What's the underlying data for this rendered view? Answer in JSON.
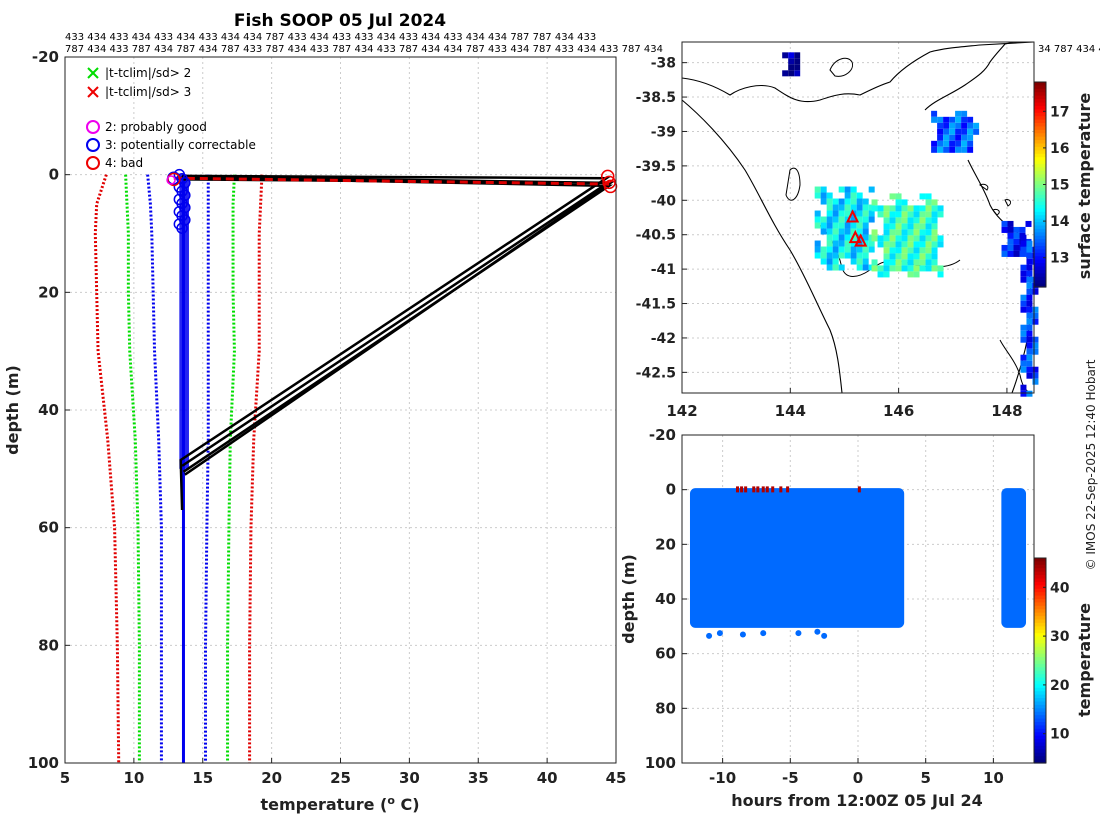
{
  "chart_data": [
    {
      "type": "line",
      "name": "profile",
      "title": "Fish SOOP 05 Jul 2024",
      "xlabel": "temperature (",
      "xlabel_sup": "o",
      "xlabel_unit": " C)",
      "ylabel": "depth (m)",
      "xlim": [
        5,
        45
      ],
      "ylim": [
        -20,
        100
      ],
      "y_reversed": true,
      "xticks": [
        "5",
        "10",
        "15",
        "20",
        "25",
        "30",
        "35",
        "40",
        "45"
      ],
      "yticks": [
        "-20",
        "0",
        "20",
        "40",
        "60",
        "80",
        "100"
      ],
      "grid": true,
      "id_row1": "433 434 433 434 433 434 433 434 434 787 433 434 433 433 434 433 434 433 434 434 787 787 434 433",
      "id_row2": "787 434 433 787 434 787 434 787 433 787 434 433 787 434 433 787 434 434 787 433 434 787 433 434 433 787 434",
      "id_row_right": "34 787 434 4",
      "legend": [
        {
          "label": "|t-tclim|/sd> 2",
          "marker": "x",
          "color": "#00dd00"
        },
        {
          "label": "|t-tclim|/sd> 3",
          "marker": "x",
          "color": "#ee0000"
        },
        {
          "label": "2: probably good",
          "marker": "o",
          "color": "#ee00ee"
        },
        {
          "label": "3: potentially correctable",
          "marker": "o",
          "color": "#0000ee"
        },
        {
          "label": "4: bad",
          "marker": "o",
          "color": "#ee0000"
        }
      ],
      "climatology": [
        {
          "name": "clim -3sd",
          "color": "#e00000",
          "depth": [
            0,
            5,
            10,
            20,
            30,
            45,
            60,
            80,
            100
          ],
          "temp": [
            8.0,
            7.3,
            7.2,
            7.3,
            7.4,
            8.1,
            8.6,
            8.8,
            8.9
          ]
        },
        {
          "name": "clim -2sd",
          "color": "#00dd00",
          "depth": [
            0,
            5,
            10,
            20,
            30,
            45,
            60,
            80,
            100
          ],
          "temp": [
            9.4,
            9.5,
            9.6,
            9.6,
            9.7,
            10.1,
            10.3,
            10.4,
            10.4
          ]
        },
        {
          "name": "clim -1sd",
          "color": "#0000ee",
          "depth": [
            0,
            5,
            10,
            20,
            30,
            45,
            60,
            80,
            100
          ],
          "temp": [
            11.0,
            11.2,
            11.3,
            11.4,
            11.5,
            11.8,
            12.0,
            12.0,
            12.0
          ]
        },
        {
          "name": "clim +1sd",
          "color": "#0000ee",
          "depth": [
            0,
            5,
            10,
            20,
            30,
            45,
            60,
            80,
            100
          ],
          "temp": [
            15.4,
            15.4,
            15.4,
            15.4,
            15.4,
            15.4,
            15.3,
            15.2,
            15.2
          ]
        },
        {
          "name": "clim +2sd",
          "color": "#00dd00",
          "depth": [
            0,
            5,
            10,
            20,
            30,
            45,
            60,
            80,
            100
          ],
          "temp": [
            17.3,
            17.2,
            17.2,
            17.2,
            17.3,
            17.0,
            16.9,
            16.8,
            16.8
          ]
        },
        {
          "name": "clim +3sd",
          "color": "#e00000",
          "depth": [
            0,
            5,
            10,
            20,
            30,
            45,
            60,
            80,
            100
          ],
          "temp": [
            19.3,
            19.2,
            19.1,
            19.1,
            19.1,
            18.7,
            18.5,
            18.4,
            18.4
          ]
        }
      ],
      "profiles": [
        {
          "name": "drop 1",
          "temp": [
            13.5,
            13.6,
            44.3,
            13.4,
            13.5
          ],
          "depth": [
            0.5,
            0.2,
            0.6,
            48.5,
            57
          ]
        },
        {
          "name": "drop 2",
          "temp": [
            13.7,
            13.6,
            44.4,
            13.5
          ],
          "depth": [
            0.4,
            0.3,
            1.4,
            49.5
          ]
        },
        {
          "name": "drop 3",
          "temp": [
            13.8,
            44.5,
            13.6
          ],
          "depth": [
            0.5,
            1.9,
            50.5
          ]
        },
        {
          "name": "drop 4",
          "temp": [
            13.6,
            44.6,
            13.7
          ],
          "depth": [
            0.8,
            1.4,
            51
          ]
        }
      ],
      "bad_flag_points": [
        {
          "temp": 12.9,
          "depth": 0.8
        },
        {
          "temp": 44.4,
          "depth": 0.3
        },
        {
          "temp": 44.5,
          "depth": 1.3
        },
        {
          "temp": 44.6,
          "depth": 2.0
        }
      ],
      "red_dashed_line": {
        "temp": [
          12.9,
          44.5
        ],
        "depth": [
          0.6,
          1.6
        ]
      },
      "blue_profile_temp": 13.6,
      "blue_profile_depth": [
        0,
        100
      ]
    },
    {
      "type": "heatmap",
      "name": "map",
      "xlim": [
        142,
        148.5
      ],
      "ylim": [
        -42.8,
        -37.7
      ],
      "xticks": [
        "142",
        "144",
        "146",
        "148"
      ],
      "yticks": [
        "-38",
        "-38.5",
        "-39",
        "-39.5",
        "-40",
        "-40.5",
        "-41",
        "-41.5",
        "-42",
        "-42.5"
      ],
      "colorbar_label": "surface temperature",
      "colorbar_ticks": [
        "13",
        "14",
        "15",
        "16",
        "17"
      ],
      "colorbar_range": [
        12.2,
        17.8
      ],
      "sst_patches": [
        {
          "lon": [
            144.45,
            145.5
          ],
          "lat": [
            -40.95,
            -39.8
          ],
          "sst": 14.2
        },
        {
          "lon": [
            145.5,
            146.8
          ],
          "lat": [
            -41.1,
            -39.9
          ],
          "sst": 14.6
        },
        {
          "lon": [
            146.6,
            147.4
          ],
          "lat": [
            -39.3,
            -38.7
          ],
          "sst": 13.4
        },
        {
          "lon": [
            147.9,
            148.4
          ],
          "lat": [
            -40.8,
            -40.3
          ],
          "sst": 13.0
        },
        {
          "lon": [
            143.85,
            144.15
          ],
          "lat": [
            -38.15,
            -37.85
          ],
          "sst": 12.3
        },
        {
          "lon": [
            148.25,
            148.5
          ],
          "lat": [
            -42.8,
            -40.5
          ],
          "sst": 13.2
        }
      ],
      "track_points": [
        {
          "lon": 145.15,
          "lat": -40.25
        },
        {
          "lon": 145.2,
          "lat": -40.55
        },
        {
          "lon": 145.3,
          "lat": -40.6
        }
      ]
    },
    {
      "type": "scatter",
      "name": "time-depth",
      "xlabel": "hours from 12:00Z 05 Jul 24",
      "ylabel": "depth (m)",
      "xlim": [
        -13,
        13
      ],
      "ylim": [
        -20,
        100
      ],
      "y_reversed": true,
      "xticks": [
        "-10",
        "-5",
        "0",
        "5",
        "10"
      ],
      "yticks": [
        "-20",
        "0",
        "20",
        "40",
        "60",
        "80",
        "100"
      ],
      "colorbar_label": "temperature",
      "colorbar_ticks": [
        "10",
        "20",
        "30",
        "40"
      ],
      "colorbar_range": [
        4,
        46
      ],
      "blocks": [
        {
          "hours": [
            -12.3,
            3.3
          ],
          "depth": [
            0,
            50
          ],
          "temp": 13.6
        },
        {
          "hours": [
            10.7,
            12.3
          ],
          "depth": [
            0,
            50
          ],
          "temp": 13.6
        }
      ],
      "warm_points_hours": [
        -8.9,
        -8.6,
        -8.3,
        -7.7,
        -7.4,
        -7.0,
        -6.7,
        -6.3,
        -5.7,
        -5.2,
        0.1
      ],
      "deep_points": [
        {
          "hours": -11.0,
          "depth": 53.5
        },
        {
          "hours": -10.2,
          "depth": 52.5
        },
        {
          "hours": -8.5,
          "depth": 53
        },
        {
          "hours": -7.0,
          "depth": 52.5
        },
        {
          "hours": -4.4,
          "depth": 52.5
        },
        {
          "hours": -3.0,
          "depth": 52
        },
        {
          "hours": -2.5,
          "depth": 53.5
        }
      ]
    }
  ],
  "credit": "© IMOS 22-Sep-2025 12:40 Hobart"
}
